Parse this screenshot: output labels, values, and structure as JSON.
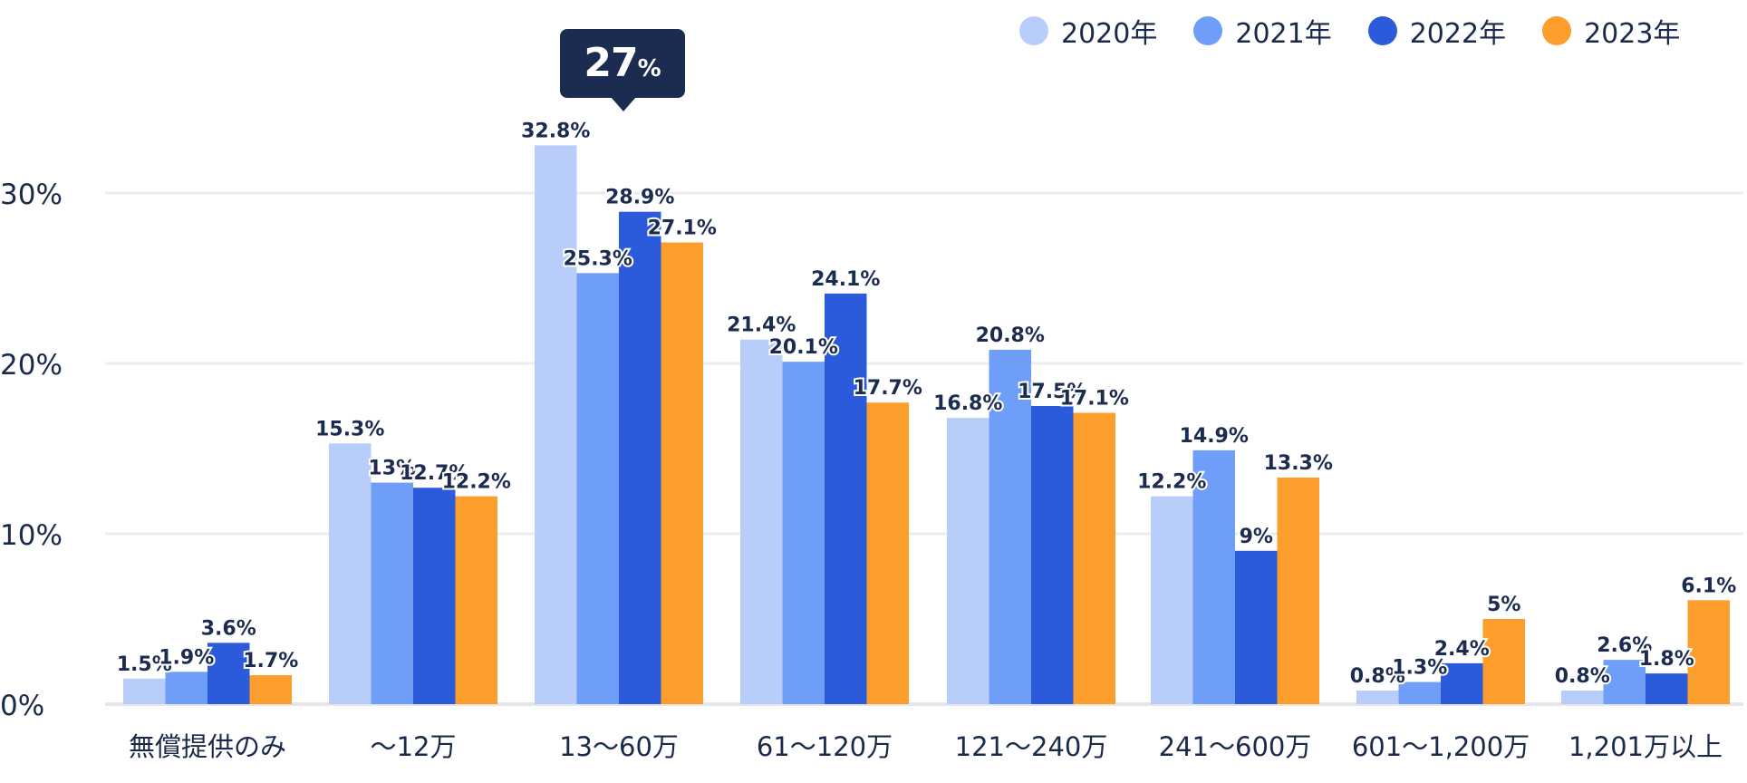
{
  "legend": [
    {
      "label": "2020年",
      "color": "#b9cdfb"
    },
    {
      "label": "2021年",
      "color": "#6f9ef8"
    },
    {
      "label": "2022年",
      "color": "#2b5bda"
    },
    {
      "label": "2023年",
      "color": "#fd9d2c"
    }
  ],
  "callout": {
    "value": "27",
    "unit": "%"
  },
  "chart_data": {
    "type": "bar",
    "categories": [
      "無償提供のみ",
      "〜12万",
      "13〜60万",
      "61〜120万",
      "121〜240万",
      "241〜600万",
      "601〜1,200万",
      "1,201万以上"
    ],
    "series": [
      {
        "name": "2020年",
        "color": "#b9cdfb",
        "values": [
          1.5,
          15.3,
          32.8,
          21.4,
          16.8,
          12.2,
          0.8,
          0.8
        ],
        "labels": [
          "1.5%",
          "15.3%",
          "32.8%",
          "21.4%",
          "16.8%",
          "12.2%",
          "0.8%",
          "0.8%"
        ]
      },
      {
        "name": "2021年",
        "color": "#6f9ef8",
        "values": [
          1.9,
          13,
          25.3,
          20.1,
          20.8,
          14.9,
          1.3,
          2.6
        ],
        "labels": [
          "1.9%",
          "13%",
          "25.3%",
          "20.1%",
          "20.8%",
          "14.9%",
          "1.3%",
          "2.6%"
        ]
      },
      {
        "name": "2022年",
        "color": "#2b5bda",
        "values": [
          3.6,
          12.7,
          28.9,
          24.1,
          17.5,
          9,
          2.4,
          1.8
        ],
        "labels": [
          "3.6%",
          "12.7%",
          "28.9%",
          "24.1%",
          "17.5%",
          "9%",
          "2.4%",
          "1.8%"
        ]
      },
      {
        "name": "2023年",
        "color": "#fd9d2c",
        "values": [
          1.7,
          12.2,
          27.1,
          17.7,
          17.1,
          13.3,
          5,
          6.1
        ],
        "labels": [
          "1.7%",
          "12.2%",
          "27.1%",
          "17.7%",
          "17.1%",
          "13.3%",
          "5%",
          "6.1%"
        ]
      }
    ],
    "yticks": [
      "0%",
      "10%",
      "20%",
      "30%"
    ],
    "ytick_values": [
      0,
      10,
      20,
      30
    ],
    "ylim": [
      0,
      33
    ],
    "grid": true,
    "legend_position": "top-right"
  }
}
